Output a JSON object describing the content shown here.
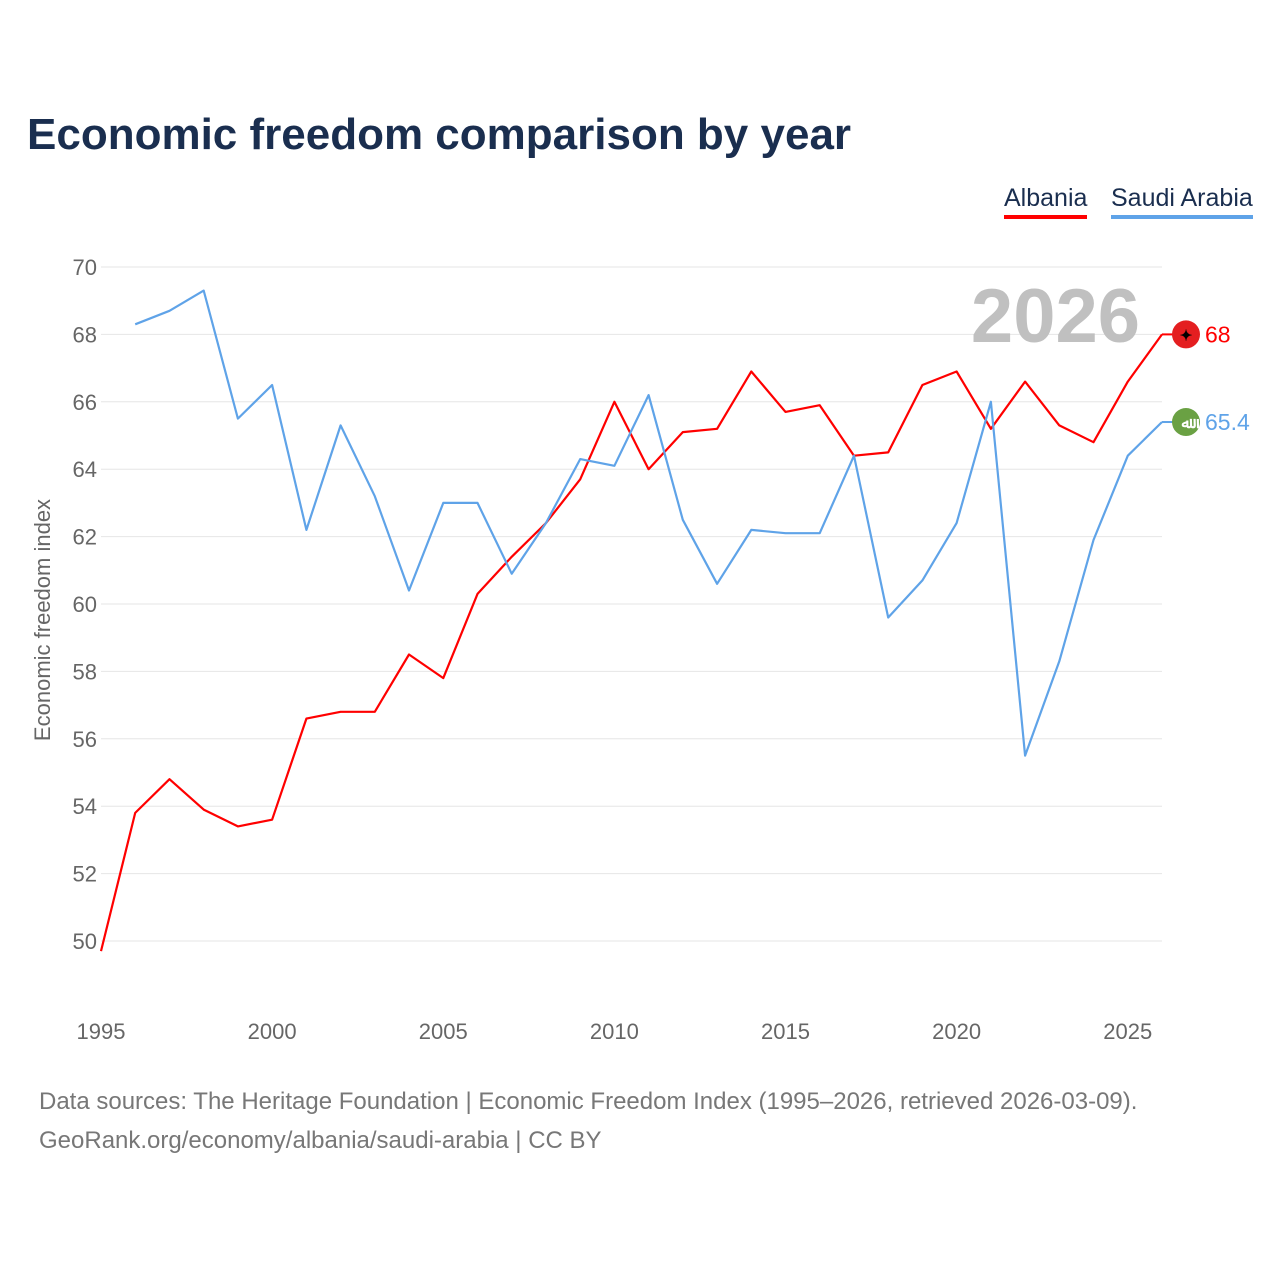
{
  "title": "Economic freedom comparison by year",
  "footer": {
    "line1": "Data sources: The Heritage Foundation | Economic Freedom Index (1995–2026, retrieved 2026-03-09).",
    "line2": "GeoRank.org/economy/albania/saudi-arabia | CC BY"
  },
  "chart_data": {
    "type": "line",
    "title": "Economic freedom comparison by year",
    "xlabel": "",
    "ylabel": "Economic freedom index",
    "year_watermark": "2026",
    "xlim": [
      1995,
      2026
    ],
    "ylim": [
      50,
      70
    ],
    "xticks": [
      1995,
      2000,
      2005,
      2010,
      2015,
      2020,
      2025
    ],
    "yticks": [
      50,
      52,
      54,
      56,
      58,
      60,
      62,
      64,
      66,
      68,
      70
    ],
    "grid": true,
    "legend_position": "top-right",
    "series": [
      {
        "name": "Albania",
        "color": "#ff0000",
        "end_label": "68",
        "flag_icon": "albania-flag-icon",
        "flag_color": "#e41e20",
        "x": [
          1995,
          1996,
          1997,
          1998,
          1999,
          2000,
          2001,
          2002,
          2003,
          2004,
          2005,
          2006,
          2007,
          2008,
          2009,
          2010,
          2011,
          2012,
          2013,
          2014,
          2015,
          2016,
          2017,
          2018,
          2019,
          2020,
          2021,
          2022,
          2023,
          2024,
          2025,
          2026
        ],
        "values": [
          49.7,
          53.8,
          54.8,
          53.9,
          53.4,
          53.6,
          56.6,
          56.8,
          56.8,
          58.5,
          57.8,
          60.3,
          61.4,
          62.4,
          63.7,
          66.0,
          64.0,
          65.1,
          65.2,
          66.9,
          65.7,
          65.9,
          64.4,
          64.5,
          66.5,
          66.9,
          65.2,
          66.6,
          65.3,
          64.8,
          66.6,
          68.0
        ]
      },
      {
        "name": "Saudi Arabia",
        "color": "#5fa3e8",
        "end_label": "65.4",
        "flag_icon": "saudi-arabia-flag-icon",
        "flag_color": "#6aa143",
        "x": [
          1996,
          1997,
          1998,
          1999,
          2000,
          2001,
          2002,
          2003,
          2004,
          2005,
          2006,
          2007,
          2008,
          2009,
          2010,
          2011,
          2012,
          2013,
          2014,
          2015,
          2016,
          2017,
          2018,
          2019,
          2020,
          2021,
          2022,
          2023,
          2024,
          2025,
          2026
        ],
        "values": [
          68.3,
          68.7,
          69.3,
          65.5,
          66.5,
          62.2,
          65.3,
          63.2,
          60.4,
          63.0,
          63.0,
          60.9,
          62.4,
          64.3,
          64.1,
          66.2,
          62.5,
          60.6,
          62.2,
          62.1,
          62.1,
          64.4,
          59.6,
          60.7,
          62.4,
          66.0,
          55.5,
          58.3,
          61.9,
          64.4,
          65.4
        ]
      }
    ]
  }
}
